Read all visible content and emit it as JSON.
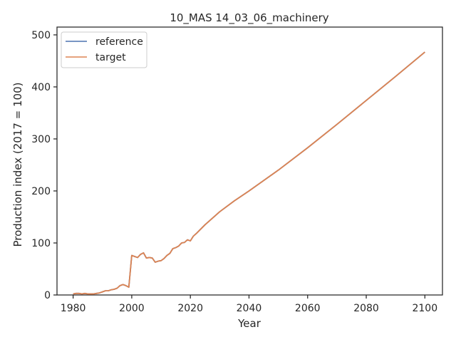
{
  "chart_data": {
    "type": "line",
    "title": "10_MAS 14_03_06_machinery",
    "xlabel": "Year",
    "ylabel": "Production index (2017 = 100)",
    "xlim": [
      1974.5,
      2106
    ],
    "ylim": [
      0,
      515
    ],
    "xticks": [
      1980,
      2000,
      2020,
      2040,
      2060,
      2080,
      2100
    ],
    "yticks": [
      0,
      100,
      200,
      300,
      400,
      500
    ],
    "grid": false,
    "legend_position": "top-left",
    "series": [
      {
        "name": "reference",
        "color": "#4c72b0",
        "x": [
          1980,
          1981,
          1982,
          1983,
          1984,
          1985,
          1986,
          1987,
          1988,
          1989,
          1990,
          1991,
          1992,
          1993,
          1994,
          1995,
          1996,
          1997,
          1998,
          1999,
          2000,
          2001,
          2002,
          2003,
          2004,
          2005,
          2006,
          2007,
          2008,
          2009,
          2010,
          2011,
          2012,
          2013,
          2014,
          2015,
          2016,
          2017,
          2018,
          2019,
          2020,
          2021,
          2022,
          2025,
          2030,
          2035,
          2040,
          2050,
          2060,
          2070,
          2080,
          2090,
          2100
        ],
        "y": [
          2,
          3,
          3,
          2,
          3,
          2,
          2,
          2,
          3,
          4,
          6,
          8,
          8,
          10,
          11,
          13,
          18,
          20,
          18,
          15,
          76,
          74,
          72,
          78,
          81,
          71,
          72,
          71,
          63,
          65,
          66,
          70,
          76,
          80,
          89,
          91,
          94,
          100,
          101,
          106,
          104,
          113,
          118,
          135,
          160,
          181,
          200,
          240,
          283,
          328,
          374,
          420,
          467
        ]
      },
      {
        "name": "target",
        "color": "#dd8452",
        "x": [
          1980,
          1981,
          1982,
          1983,
          1984,
          1985,
          1986,
          1987,
          1988,
          1989,
          1990,
          1991,
          1992,
          1993,
          1994,
          1995,
          1996,
          1997,
          1998,
          1999,
          2000,
          2001,
          2002,
          2003,
          2004,
          2005,
          2006,
          2007,
          2008,
          2009,
          2010,
          2011,
          2012,
          2013,
          2014,
          2015,
          2016,
          2017,
          2018,
          2019,
          2020,
          2021,
          2022,
          2025,
          2030,
          2035,
          2040,
          2050,
          2060,
          2070,
          2080,
          2090,
          2100
        ],
        "y": [
          2,
          3,
          3,
          2,
          3,
          2,
          2,
          2,
          3,
          4,
          6,
          8,
          8,
          10,
          11,
          13,
          18,
          20,
          18,
          15,
          76,
          74,
          72,
          78,
          81,
          71,
          72,
          71,
          63,
          65,
          66,
          70,
          76,
          80,
          89,
          91,
          94,
          100,
          101,
          106,
          104,
          113,
          118,
          135,
          160,
          181,
          200,
          240,
          283,
          328,
          374,
          420,
          467
        ]
      }
    ]
  }
}
